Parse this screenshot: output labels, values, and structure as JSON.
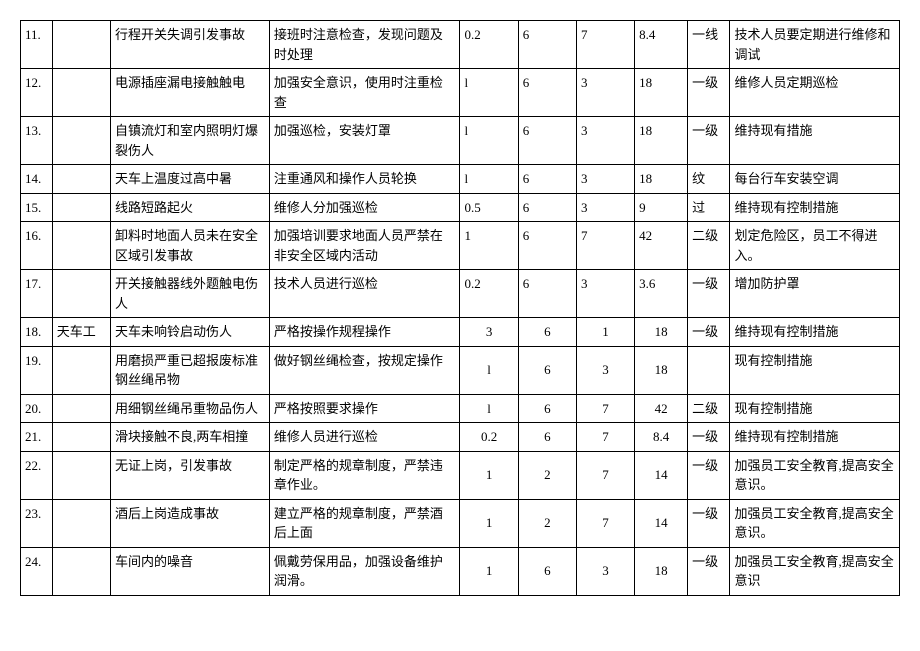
{
  "rows": [
    {
      "n": "11.",
      "job": "",
      "haz": "行程开关失调引发事故",
      "meas": "接班时注意检查，发现问题及时处理",
      "c1": "0.2",
      "c2": "6",
      "c3": "7",
      "c4": "8.4",
      "lvl": "一线",
      "rec": "技术人员要定期进行维修和调试",
      "center": false
    },
    {
      "n": "12.",
      "job": "",
      "haz": "电源插座漏电接触触电",
      "meas": "加强安全意识，使用时注重检查",
      "c1": "l",
      "c2": "6",
      "c3": "3",
      "c4": "18",
      "lvl": "一级",
      "rec": "维修人员定期巡检",
      "center": false
    },
    {
      "n": "13.",
      "job": "",
      "haz": "自镇流灯和室内照明灯爆裂伤人",
      "meas": "加强巡检，安装灯罩",
      "c1": "l",
      "c2": "6",
      "c3": "3",
      "c4": "18",
      "lvl": "一级",
      "rec": "维持现有措施",
      "center": false
    },
    {
      "n": "14.",
      "job": "",
      "haz": "天车上温度过高中暑",
      "meas": "注重通风和操作人员轮换",
      "c1": "l",
      "c2": "6",
      "c3": "3",
      "c4": "18",
      "lvl": "纹",
      "rec": "每台行车安装空调",
      "center": false
    },
    {
      "n": "15.",
      "job": "",
      "haz": "线路短路起火",
      "meas": "维修人分加强巡检",
      "c1": "0.5",
      "c2": "6",
      "c3": "3",
      "c4": "9",
      "lvl": "过",
      "rec": "维持现有控制措施",
      "center": false
    },
    {
      "n": "16.",
      "job": "",
      "haz": "卸料时地面人员未在安全区域引发事故",
      "meas": "加强培训要求地面人员严禁在非安全区域内活动",
      "c1": "1",
      "c2": "6",
      "c3": "7",
      "c4": "42",
      "lvl": "二级",
      "rec": "划定危险区，员工不得进入。",
      "center": false
    },
    {
      "n": "17.",
      "job": "",
      "haz": "开关接触器线外题触电伤人",
      "meas": "技术人员进行巡检",
      "c1": "0.2",
      "c2": "6",
      "c3": "3",
      "c4": "3.6",
      "lvl": "一级",
      "rec": "增加防护罩",
      "center": false
    },
    {
      "n": "18.",
      "job": "天车工",
      "haz": "天车未响铃启动伤人",
      "meas": "严格按操作规程操作",
      "c1": "3",
      "c2": "6",
      "c3": "1",
      "c4": "18",
      "lvl": "一级",
      "rec": "维持现有控制措施",
      "center": true
    },
    {
      "n": "19.",
      "job": "",
      "haz": "用磨损严重已超报废标准钢丝绳吊物",
      "meas": "做好钢丝绳检查，按规定操作",
      "c1": "l",
      "c2": "6",
      "c3": "3",
      "c4": "18",
      "lvl": "",
      "rec": "现有控制措施",
      "center": true
    },
    {
      "n": "20.",
      "job": "",
      "haz": "用细钢丝绳吊重物品伤人",
      "meas": "严格按照要求操作",
      "c1": "l",
      "c2": "6",
      "c3": "7",
      "c4": "42",
      "lvl": "二级",
      "rec": "现有控制措施",
      "center": true
    },
    {
      "n": "21.",
      "job": "",
      "haz": "滑块接触不良,两车相撞",
      "meas": "维修人员进行巡检",
      "c1": "0.2",
      "c2": "6",
      "c3": "7",
      "c4": "8.4",
      "lvl": "一级",
      "rec": "维持现有控制措施",
      "center": true
    },
    {
      "n": "22.",
      "job": "",
      "haz": "无证上岗，引发事故",
      "meas": "制定严格的规章制度，严禁违章作业。",
      "c1": "1",
      "c2": "2",
      "c3": "7",
      "c4": "14",
      "lvl": "一级",
      "rec": "加强员工安全教育,提高安全意识。",
      "center": true
    },
    {
      "n": "23.",
      "job": "",
      "haz": "酒后上岗造成事故",
      "meas": "建立严格的规章制度，严禁酒后上面",
      "c1": "1",
      "c2": "2",
      "c3": "7",
      "c4": "14",
      "lvl": "一级",
      "rec": "加强员工安全教育,提高安全意识。",
      "center": true
    },
    {
      "n": "24.",
      "job": "",
      "haz": "车间内的噪音",
      "meas": "佩戴劳保用品，加强设备维护润滑。",
      "c1": "1",
      "c2": "6",
      "c3": "3",
      "c4": "18",
      "lvl": "一级",
      "rec": "加强员工安全教育,提高安全意识",
      "center": true
    }
  ]
}
